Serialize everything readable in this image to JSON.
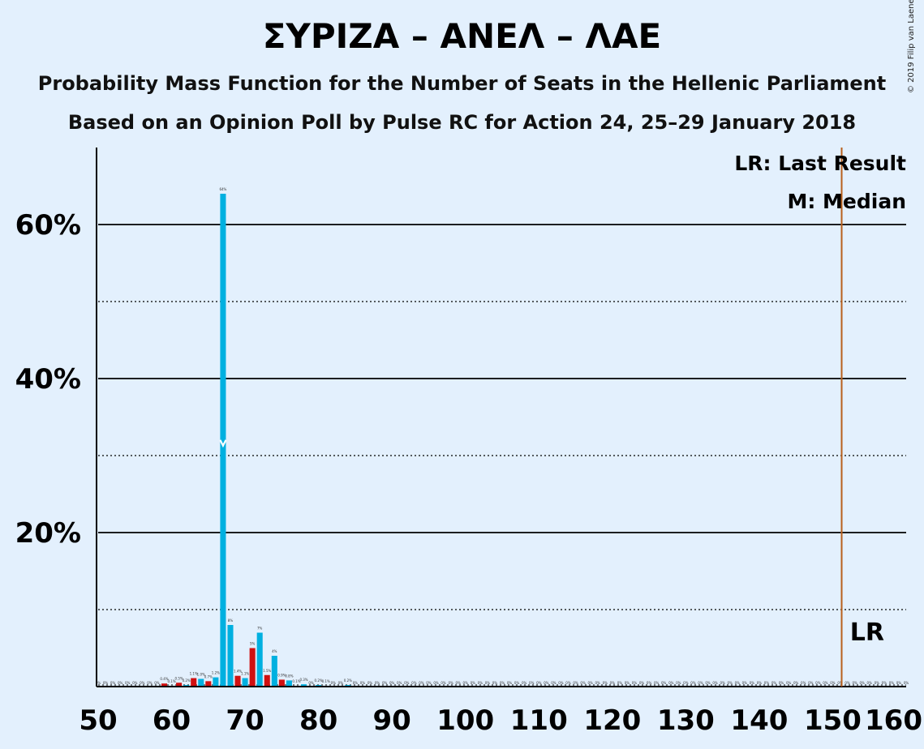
{
  "title": "ΣΥΡΙΖΑ – ΑΝΕΛ – ΛΑΕ",
  "subtitle1": "Probability Mass Function for the Number of Seats in the Hellenic Parliament",
  "subtitle2": "Based on an Opinion Poll by Pulse RC for Action 24, 25–29 January 2018",
  "copyright": "© 2019 Filip van Laenen",
  "legend": {
    "last_result": "LR: Last Result",
    "median": "M: Median"
  },
  "lr_marker": "LR",
  "median_marker": "M",
  "colors": {
    "background": "#e3f0fd",
    "red": "#d01010",
    "blue": "#00b0e0",
    "last_result_line": "#b8601c",
    "axis": "#000000"
  },
  "chart_data": {
    "type": "bar",
    "xlim": [
      50,
      160
    ],
    "ylim": [
      0,
      70
    ],
    "x_ticks": [
      50,
      60,
      70,
      80,
      90,
      100,
      110,
      120,
      130,
      140,
      150,
      160
    ],
    "y_ticks": [
      {
        "value": 20,
        "label": "20%"
      },
      {
        "value": 40,
        "label": "40%"
      },
      {
        "value": 60,
        "label": "60%"
      }
    ],
    "minor_gridlines": [
      10,
      30,
      50
    ],
    "last_result": 151,
    "median": 67,
    "bars": [
      {
        "x": 50,
        "value": 0,
        "label": "0%"
      },
      {
        "x": 51,
        "value": 0,
        "label": "0%"
      },
      {
        "x": 52,
        "value": 0,
        "label": "0%"
      },
      {
        "x": 53,
        "value": 0,
        "label": "0%"
      },
      {
        "x": 54,
        "value": 0,
        "label": "0%"
      },
      {
        "x": 55,
        "value": 0,
        "label": "0%"
      },
      {
        "x": 56,
        "value": 0,
        "label": "0%"
      },
      {
        "x": 57,
        "value": 0,
        "label": "0%"
      },
      {
        "x": 58,
        "value": 0,
        "label": "0%"
      },
      {
        "x": 59,
        "value": 0.4,
        "label": "0.4%"
      },
      {
        "x": 60,
        "value": 0.1,
        "label": "0.1%"
      },
      {
        "x": 61,
        "value": 0.5,
        "label": "0.5%"
      },
      {
        "x": 62,
        "value": 0.2,
        "label": "0.2%"
      },
      {
        "x": 63,
        "value": 1.1,
        "label": "1.1%"
      },
      {
        "x": 64,
        "value": 1.0,
        "label": "1.0%"
      },
      {
        "x": 65,
        "value": 0.7,
        "label": "0.7%"
      },
      {
        "x": 66,
        "value": 1.2,
        "label": "1.2%"
      },
      {
        "x": 67,
        "value": 64,
        "label": "64%"
      },
      {
        "x": 68,
        "value": 8,
        "label": "8%"
      },
      {
        "x": 69,
        "value": 1.4,
        "label": "1.4%"
      },
      {
        "x": 70,
        "value": 1.1,
        "label": "1.1%"
      },
      {
        "x": 71,
        "value": 5,
        "label": "5%"
      },
      {
        "x": 72,
        "value": 7,
        "label": "7%"
      },
      {
        "x": 73,
        "value": 1.5,
        "label": "1.5%"
      },
      {
        "x": 74,
        "value": 4,
        "label": "4%"
      },
      {
        "x": 75,
        "value": 0.9,
        "label": "0.9%"
      },
      {
        "x": 76,
        "value": 0.8,
        "label": "0.8%"
      },
      {
        "x": 77,
        "value": 0.1,
        "label": "0.1%"
      },
      {
        "x": 78,
        "value": 0.3,
        "label": "0.3%"
      },
      {
        "x": 79,
        "value": 0,
        "label": "0%"
      },
      {
        "x": 80,
        "value": 0.2,
        "label": "0.2%"
      },
      {
        "x": 81,
        "value": 0.1,
        "label": "0.1%"
      },
      {
        "x": 82,
        "value": 0,
        "label": "0%"
      },
      {
        "x": 83,
        "value": 0,
        "label": "0%"
      },
      {
        "x": 84,
        "value": 0.2,
        "label": "0.2%"
      },
      {
        "x": 85,
        "value": 0,
        "label": "0%"
      },
      {
        "x": 86,
        "value": 0,
        "label": "0%"
      },
      {
        "x": 87,
        "value": 0,
        "label": "0%"
      },
      {
        "x": 88,
        "value": 0,
        "label": "0%"
      },
      {
        "x": 89,
        "value": 0,
        "label": "0%"
      },
      {
        "x": 90,
        "value": 0,
        "label": "0%"
      },
      {
        "x": 91,
        "value": 0,
        "label": "0%"
      },
      {
        "x": 92,
        "value": 0,
        "label": "0%"
      },
      {
        "x": 93,
        "value": 0,
        "label": "0%"
      },
      {
        "x": 94,
        "value": 0,
        "label": "0%"
      },
      {
        "x": 95,
        "value": 0,
        "label": "0%"
      },
      {
        "x": 96,
        "value": 0,
        "label": "0%"
      },
      {
        "x": 97,
        "value": 0,
        "label": "0%"
      },
      {
        "x": 98,
        "value": 0,
        "label": "0%"
      },
      {
        "x": 99,
        "value": 0,
        "label": "0%"
      },
      {
        "x": 100,
        "value": 0,
        "label": "0%"
      },
      {
        "x": 101,
        "value": 0,
        "label": "0%"
      },
      {
        "x": 102,
        "value": 0,
        "label": "0%"
      },
      {
        "x": 103,
        "value": 0,
        "label": "0%"
      },
      {
        "x": 104,
        "value": 0,
        "label": "0%"
      },
      {
        "x": 105,
        "value": 0,
        "label": "0%"
      },
      {
        "x": 106,
        "value": 0,
        "label": "0%"
      },
      {
        "x": 107,
        "value": 0,
        "label": "0%"
      },
      {
        "x": 108,
        "value": 0,
        "label": "0%"
      },
      {
        "x": 109,
        "value": 0,
        "label": "0%"
      },
      {
        "x": 110,
        "value": 0,
        "label": "0%"
      },
      {
        "x": 111,
        "value": 0,
        "label": "0%"
      },
      {
        "x": 112,
        "value": 0,
        "label": "0%"
      },
      {
        "x": 113,
        "value": 0,
        "label": "0%"
      },
      {
        "x": 114,
        "value": 0,
        "label": "0%"
      },
      {
        "x": 115,
        "value": 0,
        "label": "0%"
      },
      {
        "x": 116,
        "value": 0,
        "label": "0%"
      },
      {
        "x": 117,
        "value": 0,
        "label": "0%"
      },
      {
        "x": 118,
        "value": 0,
        "label": "0%"
      },
      {
        "x": 119,
        "value": 0,
        "label": "0%"
      },
      {
        "x": 120,
        "value": 0,
        "label": "0%"
      },
      {
        "x": 121,
        "value": 0,
        "label": "0%"
      },
      {
        "x": 122,
        "value": 0,
        "label": "0%"
      },
      {
        "x": 123,
        "value": 0,
        "label": "0%"
      },
      {
        "x": 124,
        "value": 0,
        "label": "0%"
      },
      {
        "x": 125,
        "value": 0,
        "label": "0%"
      },
      {
        "x": 126,
        "value": 0,
        "label": "0%"
      },
      {
        "x": 127,
        "value": 0,
        "label": "0%"
      },
      {
        "x": 128,
        "value": 0,
        "label": "0%"
      },
      {
        "x": 129,
        "value": 0,
        "label": "0%"
      },
      {
        "x": 130,
        "value": 0,
        "label": "0%"
      },
      {
        "x": 131,
        "value": 0,
        "label": "0%"
      },
      {
        "x": 132,
        "value": 0,
        "label": "0%"
      },
      {
        "x": 133,
        "value": 0,
        "label": "0%"
      },
      {
        "x": 134,
        "value": 0,
        "label": "0%"
      },
      {
        "x": 135,
        "value": 0,
        "label": "0%"
      },
      {
        "x": 136,
        "value": 0,
        "label": "0%"
      },
      {
        "x": 137,
        "value": 0,
        "label": "0%"
      },
      {
        "x": 138,
        "value": 0,
        "label": "0%"
      },
      {
        "x": 139,
        "value": 0,
        "label": "0%"
      },
      {
        "x": 140,
        "value": 0,
        "label": "0%"
      },
      {
        "x": 141,
        "value": 0,
        "label": "0%"
      },
      {
        "x": 142,
        "value": 0,
        "label": "0%"
      },
      {
        "x": 143,
        "value": 0,
        "label": "0%"
      },
      {
        "x": 144,
        "value": 0,
        "label": "0%"
      },
      {
        "x": 145,
        "value": 0,
        "label": "0%"
      },
      {
        "x": 146,
        "value": 0,
        "label": "0%"
      },
      {
        "x": 147,
        "value": 0,
        "label": "0%"
      },
      {
        "x": 148,
        "value": 0,
        "label": "0%"
      },
      {
        "x": 149,
        "value": 0,
        "label": "0%"
      },
      {
        "x": 150,
        "value": 0,
        "label": "0%"
      },
      {
        "x": 151,
        "value": 0,
        "label": "0%"
      },
      {
        "x": 152,
        "value": 0,
        "label": "0%"
      },
      {
        "x": 153,
        "value": 0,
        "label": "0%"
      },
      {
        "x": 154,
        "value": 0,
        "label": "0%"
      },
      {
        "x": 155,
        "value": 0,
        "label": "0%"
      },
      {
        "x": 156,
        "value": 0,
        "label": "0%"
      },
      {
        "x": 157,
        "value": 0,
        "label": "0%"
      },
      {
        "x": 158,
        "value": 0,
        "label": "0%"
      },
      {
        "x": 159,
        "value": 0,
        "label": "0%"
      },
      {
        "x": 160,
        "value": 0,
        "label": "0%"
      }
    ]
  }
}
